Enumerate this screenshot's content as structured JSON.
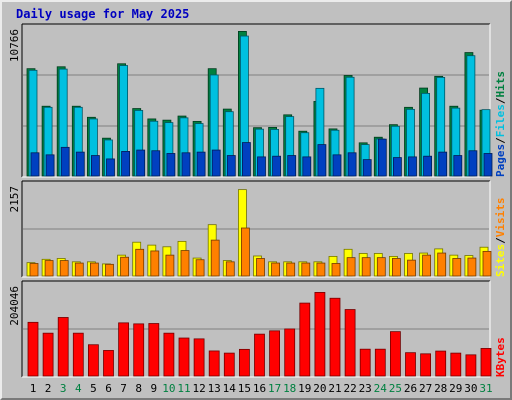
{
  "title": "Daily usage for May 2025",
  "colors": {
    "hits": "#008040",
    "files": "#00c0e0",
    "pages": "#0040c0",
    "visits": "#ff8000",
    "sites": "#ffff00",
    "kbytes": "#ff0000",
    "weekday_label": "#000000",
    "weekend_label": "#008040",
    "legend_separator": "#000000"
  },
  "chart_data": [
    {
      "type": "bar",
      "name": "hits-files-pages",
      "categories": [
        "1",
        "2",
        "3",
        "4",
        "5",
        "6",
        "7",
        "8",
        "9",
        "10",
        "11",
        "12",
        "13",
        "14",
        "15",
        "16",
        "17",
        "18",
        "19",
        "20",
        "21",
        "22",
        "23",
        "24",
        "25",
        "26",
        "27",
        "28",
        "29",
        "30",
        "31"
      ],
      "axis_max_label": "10766",
      "ylim": [
        0,
        10766
      ],
      "legend": [
        "Pages",
        "Files",
        "Hits"
      ],
      "series": [
        {
          "name": "Hits",
          "values": [
            7860,
            5110,
            8000,
            5110,
            4300,
            2770,
            8220,
            4940,
            4180,
            4090,
            4390,
            4000,
            7860,
            4900,
            10590,
            3540,
            3560,
            4480,
            3280,
            5460,
            3450,
            7360,
            2430,
            2840,
            3760,
            5030,
            6440,
            7300,
            5110,
            9040,
            4820
          ]
        },
        {
          "name": "Files",
          "values": [
            7740,
            5030,
            7830,
            5030,
            4180,
            2640,
            8090,
            4800,
            4010,
            3910,
            4260,
            3840,
            7400,
            4710,
            10250,
            3430,
            3410,
            4350,
            3170,
            6420,
            3350,
            7230,
            2300,
            2710,
            3640,
            4880,
            6050,
            7220,
            4970,
            8810,
            4860
          ]
        },
        {
          "name": "Pages",
          "values": [
            1700,
            1550,
            2100,
            1750,
            1500,
            1250,
            1800,
            1900,
            1850,
            1650,
            1700,
            1750,
            1900,
            1500,
            2450,
            1400,
            1450,
            1500,
            1400,
            2300,
            1550,
            1700,
            1200,
            2700,
            1350,
            1400,
            1450,
            1750,
            1500,
            1850,
            1650
          ]
        }
      ]
    },
    {
      "type": "bar",
      "name": "sites-visits",
      "categories": [
        "1",
        "2",
        "3",
        "4",
        "5",
        "6",
        "7",
        "8",
        "9",
        "10",
        "11",
        "12",
        "13",
        "14",
        "15",
        "16",
        "17",
        "18",
        "19",
        "20",
        "21",
        "22",
        "23",
        "24",
        "25",
        "26",
        "27",
        "28",
        "29",
        "30",
        "31"
      ],
      "axis_max_label": "2157",
      "ylim": [
        0,
        2157
      ],
      "legend": [
        "Sites",
        "Visits"
      ],
      "series": [
        {
          "name": "Sites",
          "values": [
            320,
            400,
            420,
            340,
            340,
            290,
            500,
            810,
            740,
            700,
            830,
            430,
            1230,
            370,
            2070,
            480,
            340,
            340,
            340,
            340,
            470,
            640,
            540,
            540,
            470,
            540,
            550,
            650,
            500,
            490,
            690
          ]
        },
        {
          "name": "Visits",
          "values": [
            300,
            370,
            370,
            310,
            310,
            280,
            450,
            640,
            600,
            500,
            610,
            390,
            860,
            340,
            1150,
            420,
            310,
            310,
            310,
            310,
            300,
            440,
            440,
            440,
            420,
            380,
            500,
            550,
            420,
            430,
            590
          ]
        }
      ]
    },
    {
      "type": "bar",
      "name": "kbytes",
      "categories": [
        "1",
        "2",
        "3",
        "4",
        "5",
        "6",
        "7",
        "8",
        "9",
        "10",
        "11",
        "12",
        "13",
        "14",
        "15",
        "16",
        "17",
        "18",
        "19",
        "20",
        "21",
        "22",
        "23",
        "24",
        "25",
        "26",
        "27",
        "28",
        "29",
        "30",
        "31"
      ],
      "axis_max_label": "204046",
      "ylim": [
        0,
        204046
      ],
      "legend": [
        "KBytes"
      ],
      "series": [
        {
          "name": "KBytes",
          "values": [
            121700,
            97100,
            132700,
            97100,
            70900,
            57900,
            120500,
            118200,
            119000,
            97100,
            86100,
            84200,
            56800,
            51900,
            60400,
            94900,
            102400,
            106700,
            165300,
            189500,
            176300,
            150700,
            60800,
            60800,
            100600,
            52900,
            50300,
            56500,
            51900,
            48000,
            62500
          ]
        }
      ]
    }
  ],
  "days": [
    {
      "label": "1",
      "weekend": false
    },
    {
      "label": "2",
      "weekend": false
    },
    {
      "label": "3",
      "weekend": true
    },
    {
      "label": "4",
      "weekend": true
    },
    {
      "label": "5",
      "weekend": false
    },
    {
      "label": "6",
      "weekend": false
    },
    {
      "label": "7",
      "weekend": false
    },
    {
      "label": "8",
      "weekend": false
    },
    {
      "label": "9",
      "weekend": false
    },
    {
      "label": "10",
      "weekend": true
    },
    {
      "label": "11",
      "weekend": true
    },
    {
      "label": "12",
      "weekend": false
    },
    {
      "label": "13",
      "weekend": false
    },
    {
      "label": "14",
      "weekend": false
    },
    {
      "label": "15",
      "weekend": false
    },
    {
      "label": "16",
      "weekend": false
    },
    {
      "label": "17",
      "weekend": true
    },
    {
      "label": "18",
      "weekend": true
    },
    {
      "label": "19",
      "weekend": false
    },
    {
      "label": "20",
      "weekend": false
    },
    {
      "label": "21",
      "weekend": false
    },
    {
      "label": "22",
      "weekend": false
    },
    {
      "label": "23",
      "weekend": false
    },
    {
      "label": "24",
      "weekend": true
    },
    {
      "label": "25",
      "weekend": true
    },
    {
      "label": "26",
      "weekend": false
    },
    {
      "label": "27",
      "weekend": false
    },
    {
      "label": "28",
      "weekend": false
    },
    {
      "label": "29",
      "weekend": false
    },
    {
      "label": "30",
      "weekend": false
    },
    {
      "label": "31",
      "weekend": true
    }
  ],
  "legend_separator": "/"
}
